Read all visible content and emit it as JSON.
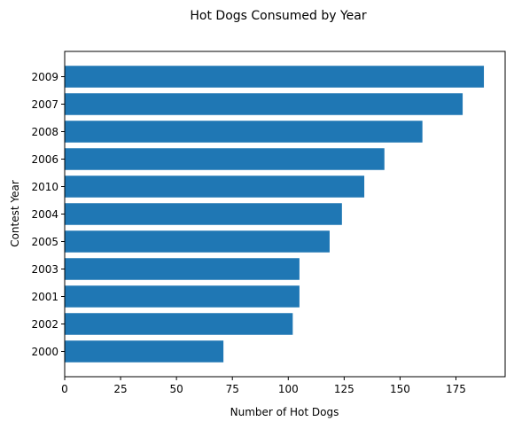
{
  "chart_data": {
    "type": "bar",
    "orientation": "horizontal",
    "title": "Hot Dogs Consumed by Year",
    "xlabel": "Number of Hot Dogs",
    "ylabel": "Contest Year",
    "categories": [
      "2009",
      "2007",
      "2008",
      "2006",
      "2010",
      "2004",
      "2005",
      "2003",
      "2001",
      "2002",
      "2000"
    ],
    "values": [
      187.5,
      178,
      160,
      143,
      134,
      124,
      118.5,
      105,
      105,
      102,
      71
    ],
    "xlim": [
      0,
      197
    ],
    "xticks": [
      0,
      25,
      50,
      75,
      100,
      125,
      150,
      175
    ],
    "grid": false,
    "bar_color": "#1f77b4"
  }
}
